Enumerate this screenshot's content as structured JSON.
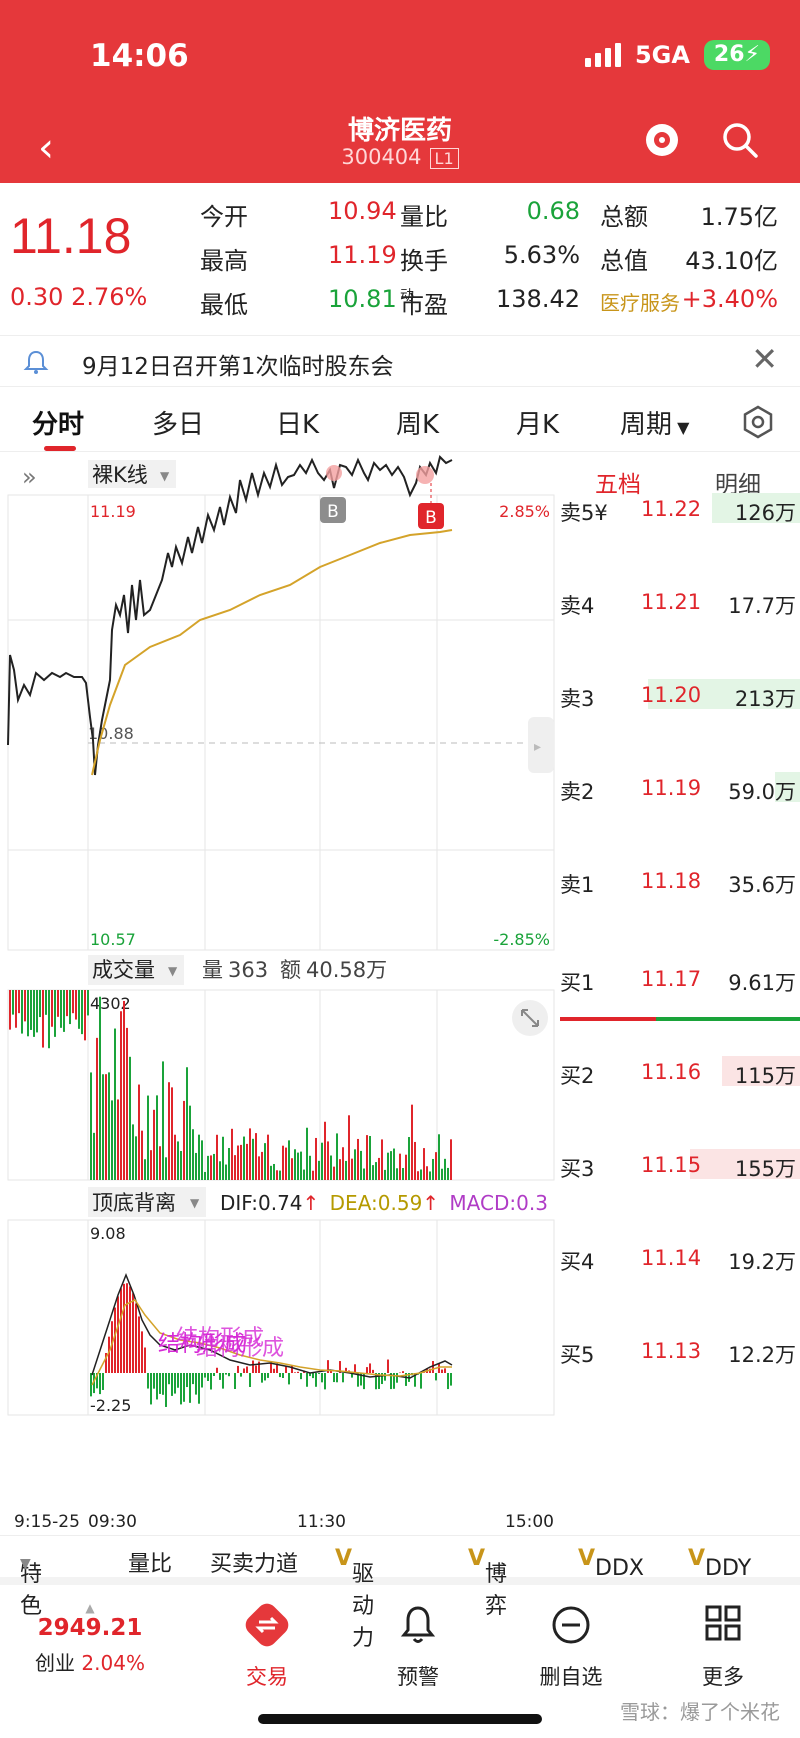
{
  "status": {
    "time": "14:06",
    "network": "5GA",
    "battery": "26"
  },
  "header": {
    "stock_name": "博济医药",
    "stock_code": "300404",
    "level": "L1"
  },
  "quote": {
    "price": "11.18",
    "change": "0.30",
    "change_pct": "2.76%",
    "rows": [
      {
        "k1": "今开",
        "v1": "10.94",
        "k2": "量比",
        "v2": "0.68",
        "k3": "总额",
        "v3": "1.75亿"
      },
      {
        "k1": "最高",
        "v1": "11.19",
        "k2": "换手",
        "v2": "5.63%",
        "k3": "总值",
        "v3": "43.10亿"
      },
      {
        "k1": "最低",
        "v1": "10.81",
        "k2": "市盈",
        "k2_sup": "动",
        "v2": "138.42",
        "k3": "医疗服务",
        "v3": "+3.40%"
      }
    ]
  },
  "notice": {
    "text": "9月12日召开第1次临时股东会"
  },
  "tabs": [
    "分时",
    "多日",
    "日K",
    "周K",
    "月K",
    "周期"
  ],
  "chart": {
    "kline_label": "裸K线",
    "price_high": "11.19",
    "price_low": "10.57",
    "price_ref": "10.88",
    "pct_high": "2.85%",
    "pct_low": "-2.85%",
    "markers": [
      "B",
      "B"
    ],
    "volume": {
      "label": "成交量",
      "qty_label": "量",
      "qty": "363",
      "amt_label": "额",
      "amt": "40.58万",
      "max": "4302"
    },
    "macd": {
      "label": "顶底背离",
      "dif_label": "DIF:",
      "dif": "0.74",
      "dea_label": "DEA:",
      "dea": "0.59",
      "macd_label": "MACD:",
      "macd": "0.3",
      "high": "9.08",
      "low": "-2.25",
      "annotation": "结构形成"
    },
    "time_axis": [
      "9:15-25",
      "09:30",
      "11:30",
      "15:00"
    ]
  },
  "orderbook": {
    "tab_five": "五档",
    "tab_detail": "明细",
    "asks": [
      {
        "label": "卖5¥",
        "price": "11.22",
        "vol": "126万",
        "bar": 0.36
      },
      {
        "label": "卖4",
        "price": "11.21",
        "vol": "17.7万",
        "bar": 0
      },
      {
        "label": "卖3",
        "price": "11.20",
        "vol": "213万",
        "bar": 0.62
      },
      {
        "label": "卖2",
        "price": "11.19",
        "vol": "59.0万",
        "bar": 0.1
      },
      {
        "label": "卖1",
        "price": "11.18",
        "vol": "35.6万",
        "bar": 0
      }
    ],
    "bids": [
      {
        "label": "买1",
        "price": "11.17",
        "vol": "9.61万",
        "bar": 0
      },
      {
        "label": "买2",
        "price": "11.16",
        "vol": "115万",
        "bar": 0.32
      },
      {
        "label": "买3",
        "price": "11.15",
        "vol": "155万",
        "bar": 0.45
      },
      {
        "label": "买4",
        "price": "11.14",
        "vol": "19.2万",
        "bar": 0
      },
      {
        "label": "买5",
        "price": "11.13",
        "vol": "12.2万",
        "bar": 0
      }
    ]
  },
  "bottom_strip": [
    "特色",
    "量比",
    "买卖力道",
    "驱动力",
    "博弈",
    "DDX",
    "DDY"
  ],
  "nav": {
    "index_value": "2949.21",
    "index_name": "创业",
    "index_change": "2.04%",
    "items": [
      {
        "label": "交易",
        "icon": "trade-icon"
      },
      {
        "label": "预警",
        "icon": "bell-icon"
      },
      {
        "label": "删自选",
        "icon": "minus-circle-icon"
      },
      {
        "label": "更多",
        "icon": "grid-icon"
      }
    ]
  },
  "watermark": "雪球：爆了个米花"
}
